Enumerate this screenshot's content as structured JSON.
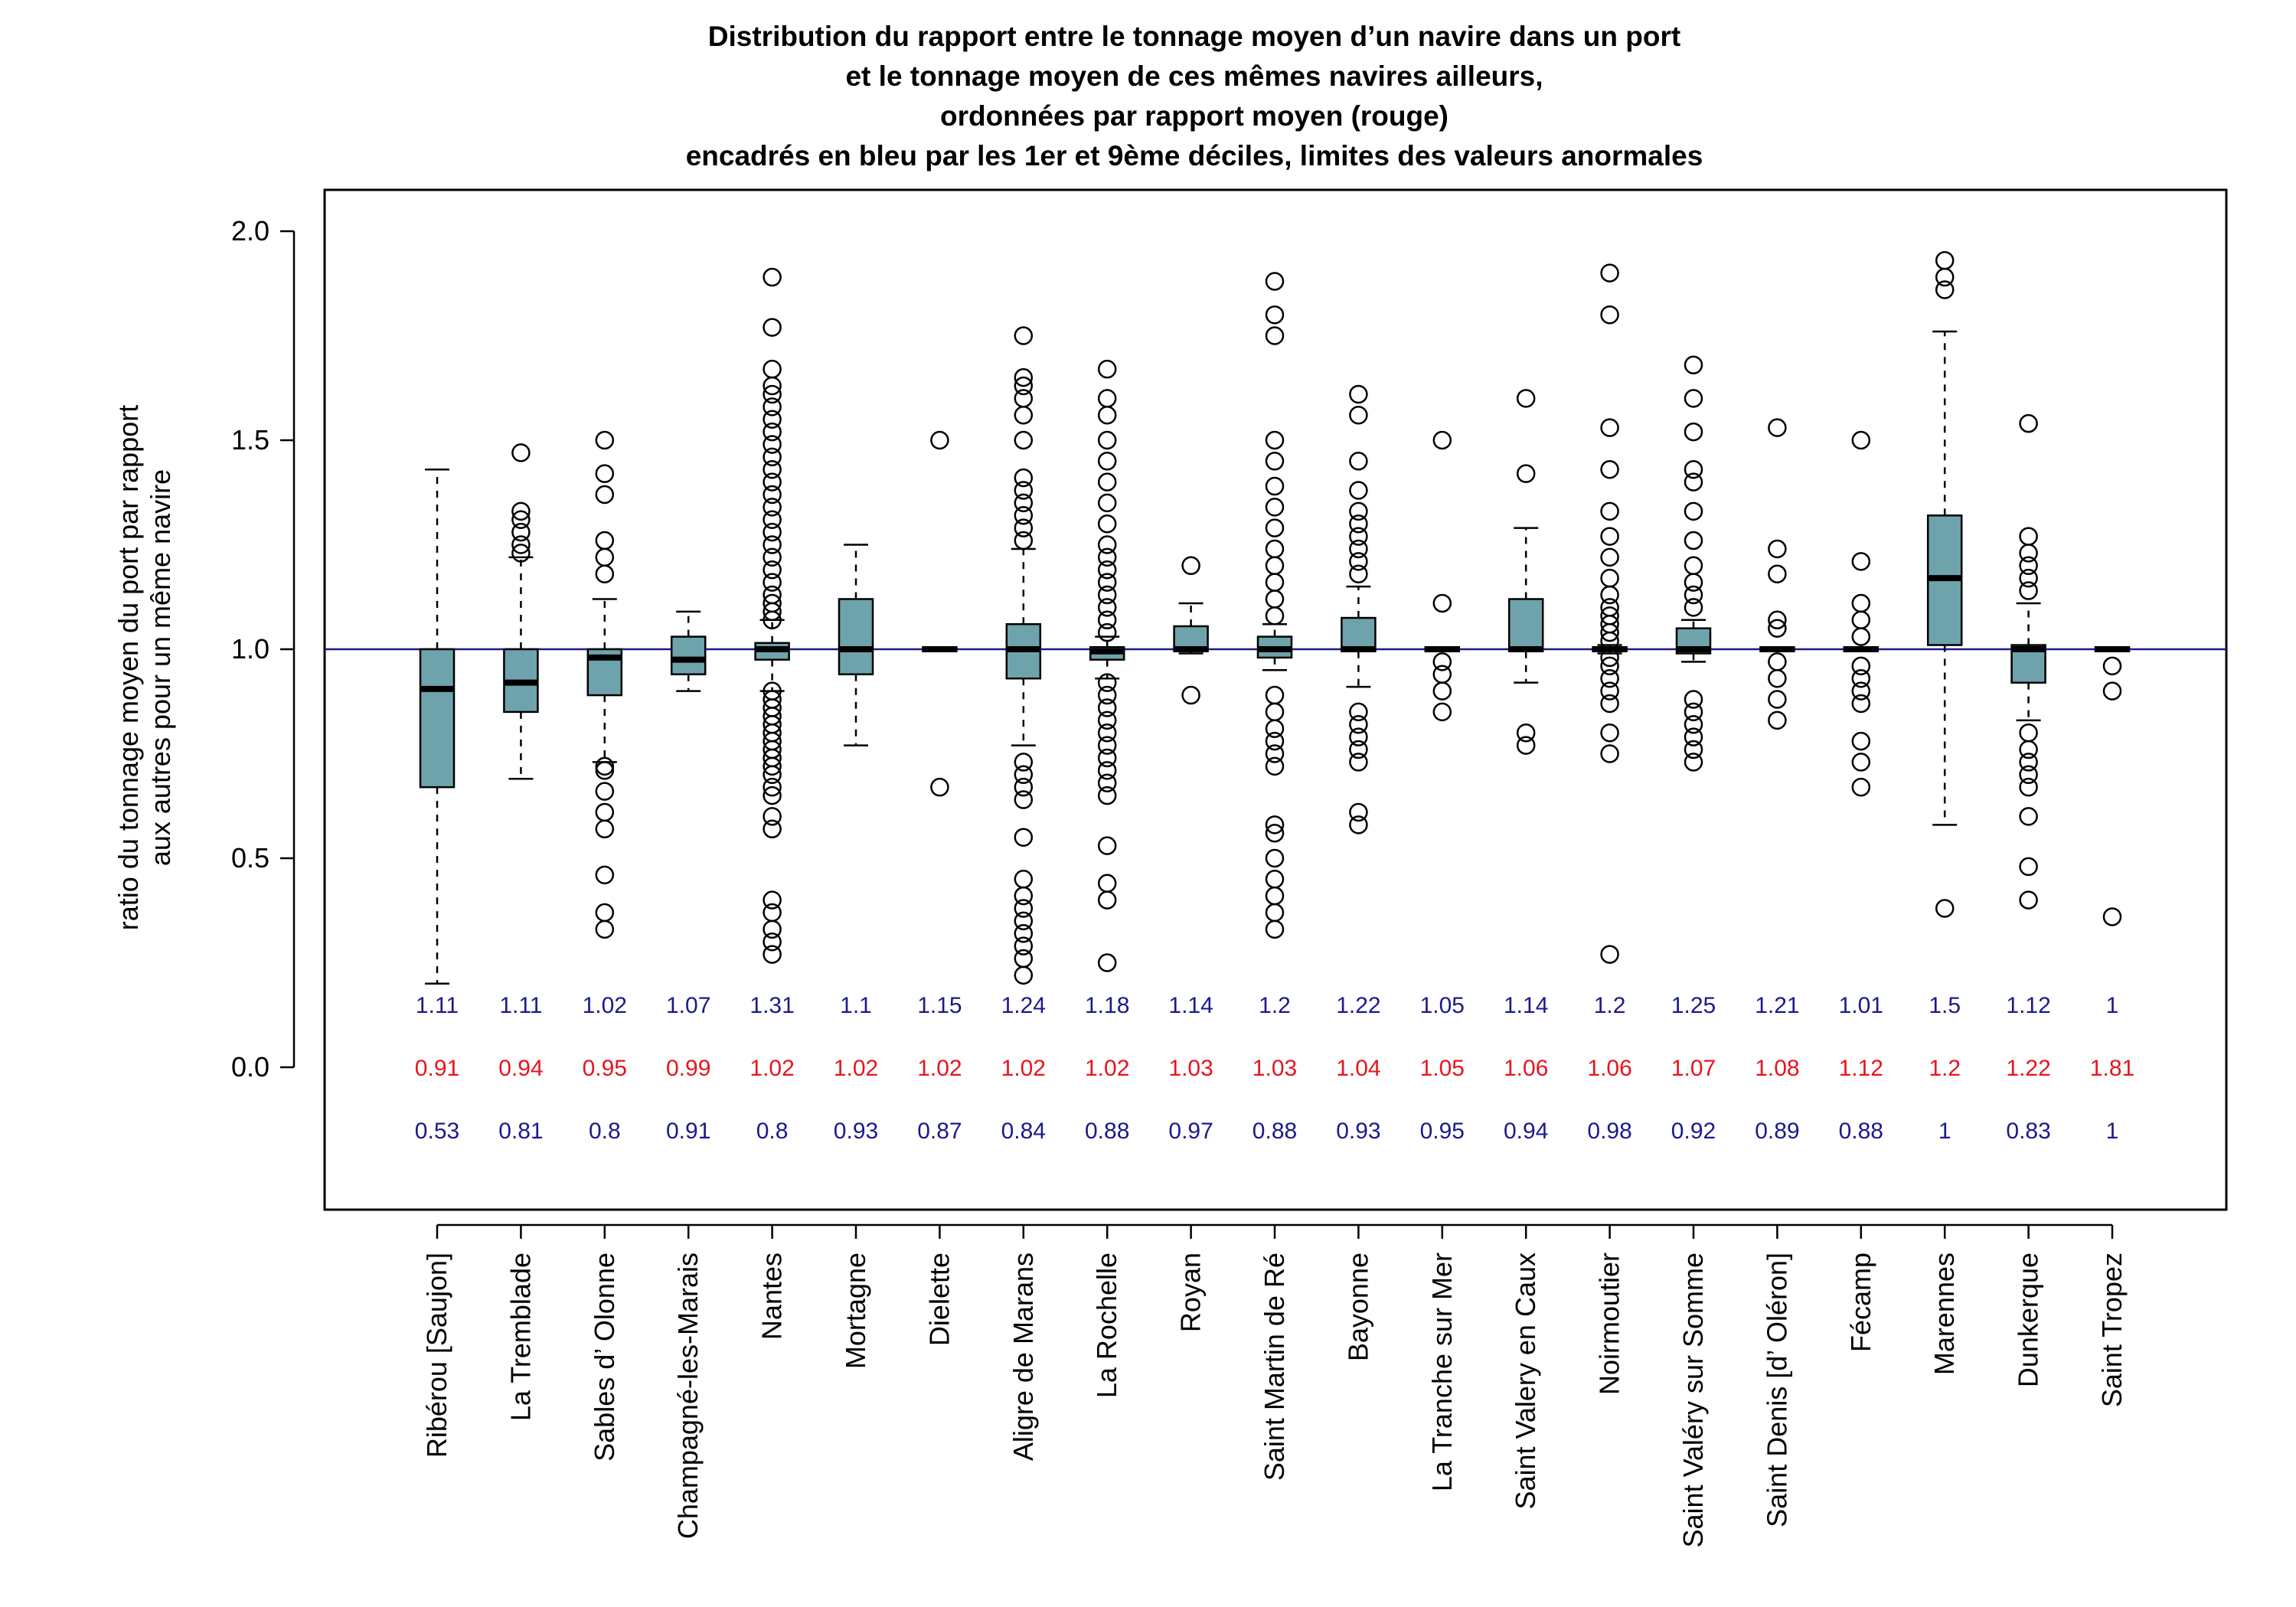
{
  "chart_data": {
    "type": "boxplot",
    "title_lines": [
      "Distribution du rapport entre le tonnage moyen d’un navire dans un port",
      "et le tonnage moyen de ces mêmes navires ailleurs,",
      "ordonnées par rapport moyen (rouge)",
      "encadrés en bleu par les 1er et 9ème déciles, limites des valeurs anormales"
    ],
    "ylabel_lines": [
      "ratio du tonnage moyen du port par rapport",
      "aux autres pour un même navire"
    ],
    "ylim": [
      -0.35,
      2.1
    ],
    "yticks": [
      "0.0",
      "0.5",
      "1.0",
      "1.5",
      "2.0"
    ],
    "reference_line": 1.0,
    "colors": {
      "box_fill": "#6fa3ac",
      "reference_line": "#1a1a8c",
      "mean_text": "#e8141e",
      "decile_text": "#1a1a8c"
    },
    "categories": [
      "Ribérou [Saujon]",
      "La Tremblade",
      "Sables d’ Olonne",
      "Champagné-les-Marais",
      "Nantes",
      "Mortagne",
      "Dielette",
      "Aligre de Marans",
      "La Rochelle",
      "Royan",
      "Saint Martin de Ré",
      "Bayonne",
      "La Tranche sur Mer",
      "Saint Valery en Caux",
      "Noirmoutier",
      "Saint Valéry sur Somme",
      "Saint Denis [d’ Oléron]",
      "Fécamp",
      "Marennes",
      "Dunkerque",
      "Saint Tropez"
    ],
    "decile9_labels": [
      "1.11",
      "1.11",
      "1.02",
      "1.07",
      "1.31",
      "1.1",
      "1.15",
      "1.24",
      "1.18",
      "1.14",
      "1.2",
      "1.22",
      "1.05",
      "1.14",
      "1.2",
      "1.25",
      "1.21",
      "1.01",
      "1.5",
      "1.12",
      "1"
    ],
    "mean_labels": [
      "0.91",
      "0.94",
      "0.95",
      "0.99",
      "1.02",
      "1.02",
      "1.02",
      "1.02",
      "1.02",
      "1.03",
      "1.03",
      "1.04",
      "1.05",
      "1.06",
      "1.06",
      "1.07",
      "1.08",
      "1.12",
      "1.2",
      "1.22",
      "1.81"
    ],
    "decile1_labels": [
      "0.53",
      "0.81",
      "0.8",
      "0.91",
      "0.8",
      "0.93",
      "0.87",
      "0.84",
      "0.88",
      "0.97",
      "0.88",
      "0.93",
      "0.95",
      "0.94",
      "0.98",
      "0.92",
      "0.89",
      "0.88",
      "1",
      "0.83",
      "1"
    ],
    "boxes": [
      {
        "wlo": 0.2,
        "q1": 0.67,
        "med": 0.905,
        "q3": 1.0,
        "whi": 1.43,
        "outliers": []
      },
      {
        "wlo": 0.69,
        "q1": 0.85,
        "med": 0.92,
        "q3": 1.0,
        "whi": 1.22,
        "outliers": [
          1.23,
          1.25,
          1.28,
          1.31,
          1.33,
          1.47
        ]
      },
      {
        "wlo": 0.73,
        "q1": 0.89,
        "med": 0.98,
        "q3": 1.0,
        "whi": 1.12,
        "outliers": [
          0.33,
          0.37,
          0.46,
          0.57,
          0.61,
          0.66,
          0.71,
          0.72,
          1.18,
          1.22,
          1.26,
          1.37,
          1.42,
          1.5
        ]
      },
      {
        "wlo": 0.9,
        "q1": 0.94,
        "med": 0.975,
        "q3": 1.03,
        "whi": 1.09,
        "outliers": []
      },
      {
        "wlo": 0.9,
        "q1": 0.975,
        "med": 1.0,
        "q3": 1.015,
        "whi": 1.07,
        "outliers": [
          0.27,
          0.3,
          0.33,
          0.37,
          0.4,
          0.57,
          0.6,
          0.65,
          0.67,
          0.7,
          0.72,
          0.74,
          0.76,
          0.78,
          0.8,
          0.82,
          0.84,
          0.86,
          0.88,
          0.9,
          1.07,
          1.09,
          1.11,
          1.13,
          1.16,
          1.19,
          1.22,
          1.25,
          1.28,
          1.31,
          1.34,
          1.37,
          1.4,
          1.43,
          1.46,
          1.49,
          1.52,
          1.55,
          1.58,
          1.61,
          1.63,
          1.67,
          1.77,
          1.89
        ]
      },
      {
        "wlo": 0.77,
        "q1": 0.94,
        "med": 1.0,
        "q3": 1.12,
        "whi": 1.25,
        "outliers": []
      },
      {
        "wlo": 1.0,
        "q1": 0.995,
        "med": 1.0,
        "q3": 1.005,
        "whi": 1.0,
        "outliers": [
          0.67,
          1.5
        ]
      },
      {
        "wlo": 0.77,
        "q1": 0.93,
        "med": 1.0,
        "q3": 1.06,
        "whi": 1.24,
        "outliers": [
          0.22,
          0.26,
          0.29,
          0.32,
          0.35,
          0.38,
          0.41,
          0.45,
          0.55,
          0.64,
          0.67,
          0.7,
          0.73,
          1.26,
          1.29,
          1.32,
          1.35,
          1.38,
          1.41,
          1.5,
          1.56,
          1.6,
          1.63,
          1.65,
          1.75
        ]
      },
      {
        "wlo": 0.93,
        "q1": 0.975,
        "med": 0.995,
        "q3": 1.005,
        "whi": 1.03,
        "outliers": [
          0.25,
          0.4,
          0.44,
          0.53,
          0.65,
          0.68,
          0.71,
          0.74,
          0.77,
          0.8,
          0.83,
          0.86,
          0.89,
          0.92,
          1.04,
          1.07,
          1.1,
          1.13,
          1.16,
          1.19,
          1.22,
          1.25,
          1.3,
          1.35,
          1.4,
          1.45,
          1.5,
          1.56,
          1.6,
          1.67
        ]
      },
      {
        "wlo": 0.99,
        "q1": 0.995,
        "med": 1.0,
        "q3": 1.055,
        "whi": 1.11,
        "outliers": [
          0.89,
          1.2
        ]
      },
      {
        "wlo": 0.95,
        "q1": 0.98,
        "med": 1.0,
        "q3": 1.03,
        "whi": 1.06,
        "outliers": [
          0.33,
          0.37,
          0.41,
          0.45,
          0.5,
          0.56,
          0.58,
          0.72,
          0.75,
          0.78,
          0.81,
          0.85,
          0.89,
          1.08,
          1.12,
          1.16,
          1.2,
          1.24,
          1.29,
          1.34,
          1.39,
          1.45,
          1.5,
          1.75,
          1.8,
          1.88
        ]
      },
      {
        "wlo": 0.91,
        "q1": 0.995,
        "med": 1.0,
        "q3": 1.075,
        "whi": 1.15,
        "outliers": [
          0.58,
          0.61,
          0.73,
          0.76,
          0.79,
          0.82,
          0.85,
          1.18,
          1.21,
          1.24,
          1.27,
          1.3,
          1.33,
          1.38,
          1.45,
          1.56,
          1.61
        ]
      },
      {
        "wlo": 1.0,
        "q1": 0.995,
        "med": 1.0,
        "q3": 1.005,
        "whi": 1.0,
        "outliers": [
          0.85,
          0.9,
          0.94,
          0.97,
          1.11,
          1.5
        ]
      },
      {
        "wlo": 0.92,
        "q1": 0.995,
        "med": 1.0,
        "q3": 1.12,
        "whi": 1.29,
        "outliers": [
          0.77,
          0.8,
          1.42,
          1.6
        ]
      },
      {
        "wlo": 0.99,
        "q1": 0.995,
        "med": 1.0,
        "q3": 1.005,
        "whi": 1.01,
        "outliers": [
          0.27,
          0.75,
          0.8,
          0.87,
          0.9,
          0.93,
          0.96,
          0.98,
          1.02,
          1.04,
          1.06,
          1.08,
          1.1,
          1.13,
          1.17,
          1.22,
          1.27,
          1.33,
          1.43,
          1.53,
          1.8,
          1.9
        ]
      },
      {
        "wlo": 0.97,
        "q1": 0.99,
        "med": 1.0,
        "q3": 1.05,
        "whi": 1.07,
        "outliers": [
          0.73,
          0.76,
          0.79,
          0.82,
          0.85,
          0.88,
          1.1,
          1.13,
          1.16,
          1.2,
          1.26,
          1.33,
          1.4,
          1.43,
          1.52,
          1.6,
          1.68
        ]
      },
      {
        "wlo": 1.0,
        "q1": 0.995,
        "med": 1.0,
        "q3": 1.005,
        "whi": 1.0,
        "outliers": [
          0.83,
          0.88,
          0.93,
          0.97,
          1.05,
          1.07,
          1.18,
          1.24,
          1.53
        ]
      },
      {
        "wlo": 1.0,
        "q1": 0.995,
        "med": 1.0,
        "q3": 1.005,
        "whi": 1.0,
        "outliers": [
          0.67,
          0.73,
          0.78,
          0.87,
          0.9,
          0.93,
          0.96,
          1.03,
          1.07,
          1.11,
          1.21,
          1.5
        ]
      },
      {
        "wlo": 0.58,
        "q1": 1.01,
        "med": 1.17,
        "q3": 1.32,
        "whi": 1.76,
        "outliers": [
          0.38,
          1.86,
          1.89,
          1.93
        ]
      },
      {
        "wlo": 0.83,
        "q1": 0.92,
        "med": 1.0,
        "q3": 1.01,
        "whi": 1.11,
        "outliers": [
          0.4,
          0.48,
          0.6,
          0.67,
          0.7,
          0.73,
          0.76,
          0.8,
          1.14,
          1.17,
          1.2,
          1.23,
          1.27,
          1.54
        ]
      },
      {
        "wlo": 1.0,
        "q1": 0.995,
        "med": 1.0,
        "q3": 1.005,
        "whi": 1.0,
        "outliers": [
          0.36,
          0.9,
          0.96
        ]
      }
    ]
  }
}
